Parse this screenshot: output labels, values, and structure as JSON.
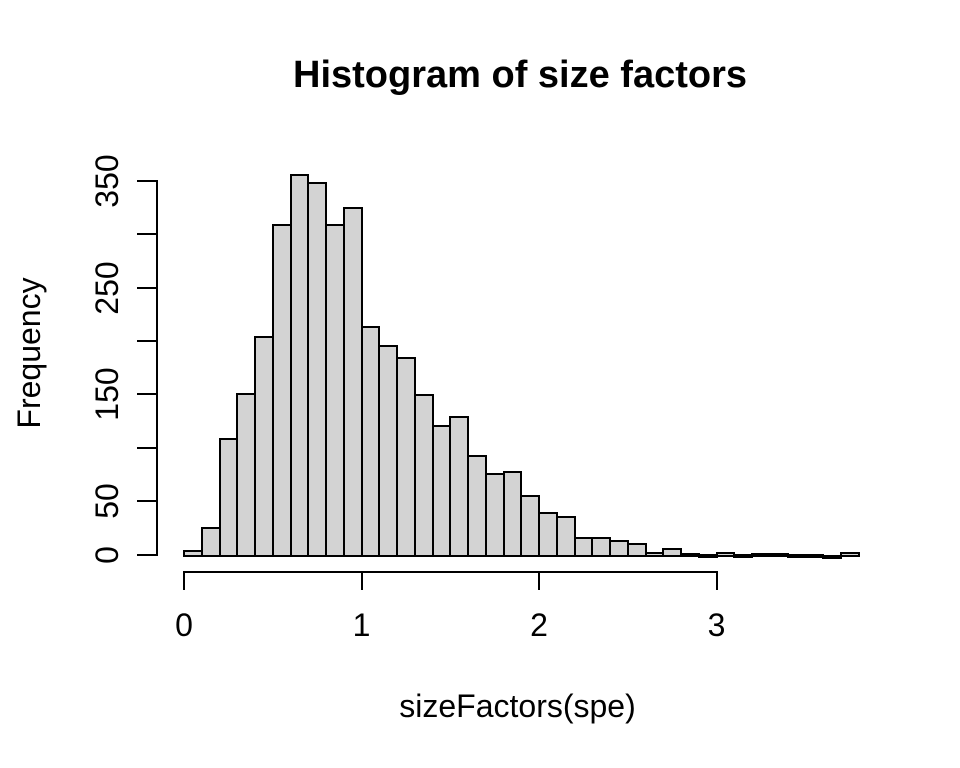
{
  "chart_data": {
    "type": "bar",
    "subtype": "histogram",
    "title": "Histogram of size factors",
    "xlabel": "sizeFactors(spe)",
    "ylabel": "Frequency",
    "bin_start": 0,
    "bin_width": 0.1,
    "counts": [
      5,
      26,
      110,
      152,
      205,
      310,
      357,
      350,
      310,
      326,
      215,
      197,
      186,
      151,
      122,
      130,
      94,
      77,
      79,
      56,
      40,
      37,
      17,
      17,
      14,
      11,
      3,
      7,
      2,
      1,
      3,
      1,
      2,
      2,
      1,
      1,
      0,
      3
    ],
    "x_ticks": [
      0,
      1,
      2,
      3
    ],
    "x_tick_labels": [
      "0",
      "1",
      "2",
      "3"
    ],
    "y_ticks": [
      0,
      50,
      100,
      150,
      200,
      250,
      300,
      350
    ],
    "y_tick_labels": [
      "0",
      "50",
      "",
      "150",
      "",
      "250",
      "",
      "350"
    ],
    "xlim": [
      0,
      3.8
    ],
    "ylim": [
      0,
      360
    ],
    "grid": false,
    "legend": false,
    "bar_fill": "#d3d3d3",
    "bar_border": "#000000",
    "axis_color": "#000000",
    "text_color": "#000000",
    "background": "#ffffff"
  }
}
